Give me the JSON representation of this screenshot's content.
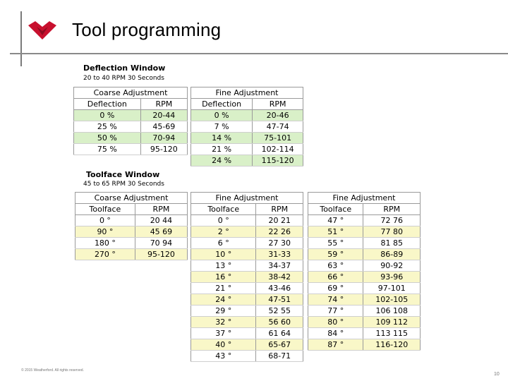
{
  "slide": {
    "title": "Tool programming",
    "footer": "© 2015 Weatherford. All rights reserved.",
    "page_number": "10"
  },
  "deflection_window": {
    "title": "Deflection Window",
    "subtitle": "20 to 40 RPM  30 Seconds",
    "coarse": {
      "caption": "Coarse Adjustment",
      "headers": [
        "Deflection",
        "RPM"
      ],
      "rows": [
        [
          "0 %",
          "20-44"
        ],
        [
          "25 %",
          "45-69"
        ],
        [
          "50 %",
          "70-94"
        ],
        [
          "75 %",
          "95-120"
        ]
      ]
    },
    "fine": {
      "caption": "Fine Adjustment",
      "headers": [
        "Deflection",
        "RPM"
      ],
      "rows": [
        [
          "0 %",
          "20-46"
        ],
        [
          "7 %",
          "47-74"
        ],
        [
          "14 %",
          "75-101"
        ],
        [
          "21 %",
          "102-114"
        ],
        [
          "24 %",
          "115-120"
        ]
      ]
    }
  },
  "toolface_window": {
    "title": "Toolface Window",
    "subtitle": "45 to 65 RPM  30 Seconds",
    "coarse": {
      "caption": "Coarse Adjustment",
      "headers": [
        "Toolface",
        "RPM"
      ],
      "rows": [
        [
          "0 °",
          "20 44"
        ],
        [
          "90 °",
          "45 69"
        ],
        [
          "180 °",
          "70 94"
        ],
        [
          "270 °",
          "95-120"
        ]
      ]
    },
    "fine_1": {
      "caption": "Fine Adjustment",
      "headers": [
        "Toolface",
        "RPM"
      ],
      "rows": [
        [
          "0 °",
          "20 21"
        ],
        [
          "2 °",
          "22 26"
        ],
        [
          "6 °",
          "27 30"
        ],
        [
          "10 °",
          "31-33"
        ],
        [
          "13 °",
          "34-37"
        ],
        [
          "16 °",
          "38-42"
        ],
        [
          "21 °",
          "43-46"
        ],
        [
          "24 °",
          "47-51"
        ],
        [
          "29 °",
          "52 55"
        ],
        [
          "32 °",
          "56 60"
        ],
        [
          "37 °",
          "61 64"
        ],
        [
          "40 °",
          "65-67"
        ],
        [
          "43 °",
          "68-71"
        ]
      ]
    },
    "fine_2": {
      "caption": "Fine Adjustment",
      "headers": [
        "Toolface",
        "RPM"
      ],
      "rows": [
        [
          "47 °",
          "72 76"
        ],
        [
          "51 °",
          "77 80"
        ],
        [
          "55 °",
          "81 85"
        ],
        [
          "59 °",
          "86-89"
        ],
        [
          "63 °",
          "90-92"
        ],
        [
          "66 °",
          "93-96"
        ],
        [
          "69 °",
          "97-101"
        ],
        [
          "74 °",
          "102-105"
        ],
        [
          "77 °",
          "106 108"
        ],
        [
          "80 °",
          "109 112"
        ],
        [
          "84 °",
          "113 115"
        ],
        [
          "87 °",
          "116-120"
        ]
      ]
    }
  },
  "colors": {
    "logo": "#c8102e",
    "green_band": "#d9f0c8",
    "yellow_band": "#f9f7c8"
  }
}
